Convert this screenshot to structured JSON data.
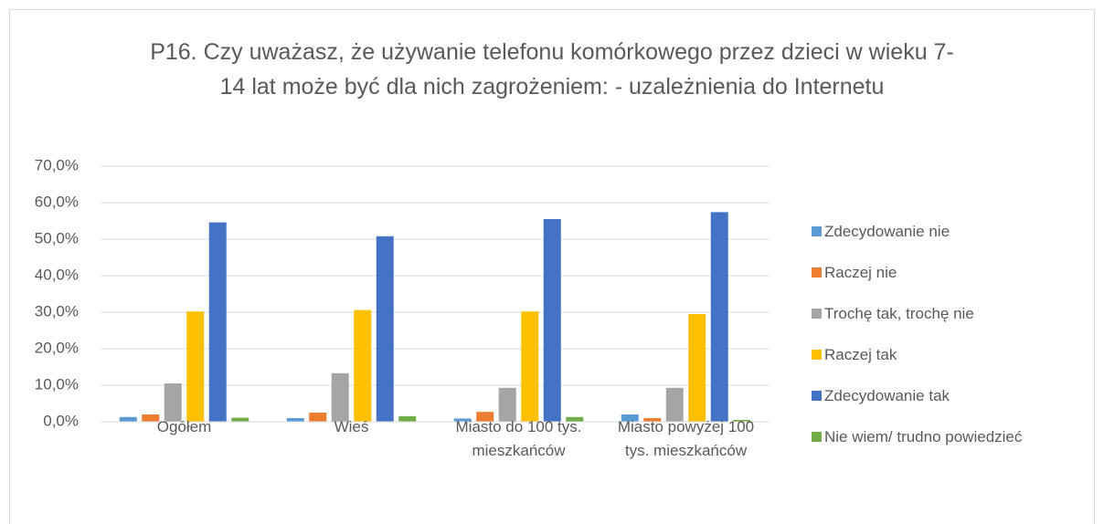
{
  "chart_data": {
    "type": "bar",
    "title": "P16. Czy uważasz, że używanie telefonu komórkowego przez dzieci w wieku 7-14 lat może być dla nich zagrożeniem: - uzależnienia do Internetu",
    "categories": [
      "Ogółem",
      "Wieś",
      "Miasto do 100 tys. mieszkańców",
      "Miasto powyżej 100 tys. mieszkańców"
    ],
    "series": [
      {
        "name": "Zdecydowanie nie",
        "color": "#5b9bd5",
        "values": [
          1.3,
          1.0,
          0.9,
          2.0
        ]
      },
      {
        "name": "Raczej nie",
        "color": "#ed7d31",
        "values": [
          2.0,
          2.5,
          2.7,
          1.0
        ]
      },
      {
        "name": "Trochę tak, trochę nie",
        "color": "#a5a5a5",
        "values": [
          10.5,
          13.3,
          9.3,
          9.3
        ]
      },
      {
        "name": "Raczej tak",
        "color": "#ffc000",
        "values": [
          30.2,
          30.6,
          30.2,
          29.5
        ]
      },
      {
        "name": "Zdecydowanie tak",
        "color": "#4472c4",
        "values": [
          54.6,
          50.8,
          55.5,
          57.4
        ]
      },
      {
        "name": "Nie wiem/ trudno powiedzieć",
        "color": "#70ad47",
        "values": [
          1.1,
          1.5,
          1.3,
          0.5
        ]
      }
    ],
    "ylim": [
      0,
      70
    ],
    "yticks": [
      {
        "value": 0,
        "label": "0,0%"
      },
      {
        "value": 10,
        "label": "10,0%"
      },
      {
        "value": 20,
        "label": "20,0%"
      },
      {
        "value": 30,
        "label": "30,0%"
      },
      {
        "value": 40,
        "label": "40,0%"
      },
      {
        "value": 50,
        "label": "50,0%"
      },
      {
        "value": 60,
        "label": "60,0%"
      },
      {
        "value": 70,
        "label": "70,0%"
      }
    ],
    "grid": true,
    "legend": "right"
  }
}
